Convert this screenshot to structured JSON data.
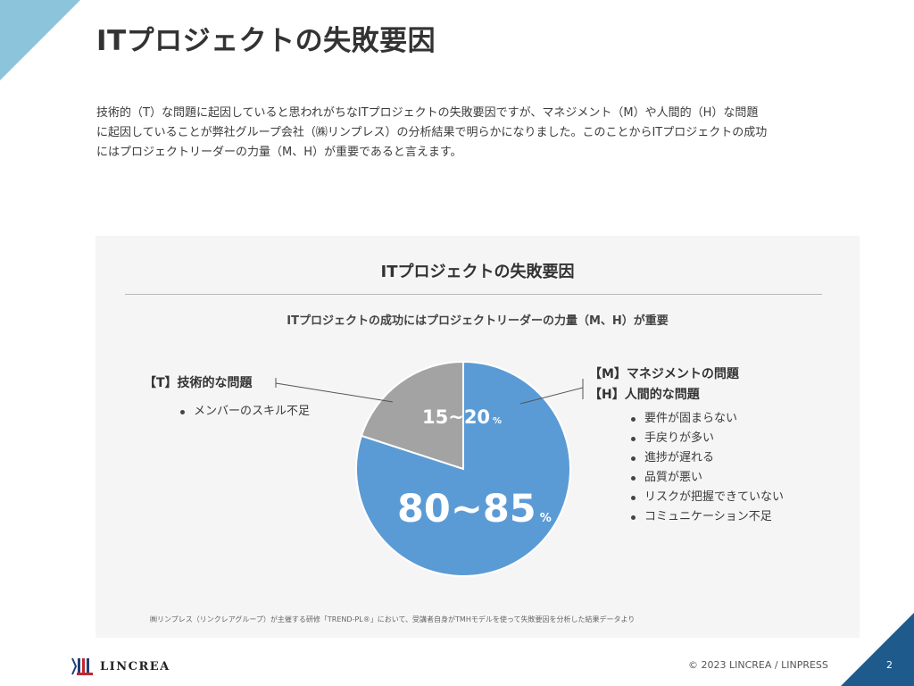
{
  "header": {
    "title": "ITプロジェクトの失敗要因"
  },
  "intro": {
    "lines": [
      "技術的（T）な問題に起因していると思われがちなITプロジェクトの失敗要因ですが、マネジメント（M）や人間的（H）な問題",
      "に起因していることが弊社グループ会社（㈱リンプレス）の分析結果で明らかになりました。このことからITプロジェクトの成功",
      "にはプロジェクトリーダーの力量（M、H）が重要であると言えます。"
    ]
  },
  "chart_data": {
    "type": "pie",
    "title": "ITプロジェクトの失敗要因",
    "subtitle": "ITプロジェクトの成功にはプロジェクトリーダーの力量（M、H）が重要",
    "slices": [
      {
        "label": "【T】技術的な問題",
        "value": 20,
        "display_value": "15~20",
        "unit": "%",
        "color": "#a3a3a3",
        "items": [
          "メンバーのスキル不足"
        ]
      },
      {
        "label": "【M】マネジメントの問題 / 【H】人間的な問題",
        "value": 80,
        "display_value": "80~85",
        "unit": "%",
        "color": "#5b9bd5",
        "items": [
          "要件が固まらない",
          "手戻りが多い",
          "進捗が遅れる",
          "品質が悪い",
          "リスクが把握できていない",
          "コミュニケーション不足"
        ]
      }
    ],
    "legend": {
      "left_heading": "【T】技術的な問題",
      "right_headings": [
        "【M】マネジメントの問題",
        "【H】人間的な問題"
      ]
    },
    "footnote": "㈱リンプレス（リンクレアグループ）が主催する研修「TREND-PL®」において、受講者自身がTMHモデルを使って失敗要因を分析した結果データより"
  },
  "footer": {
    "logo_text": "LINCREA",
    "copyright": "© 2023 LINCREA  / LINPRESS",
    "page_number": "2"
  }
}
